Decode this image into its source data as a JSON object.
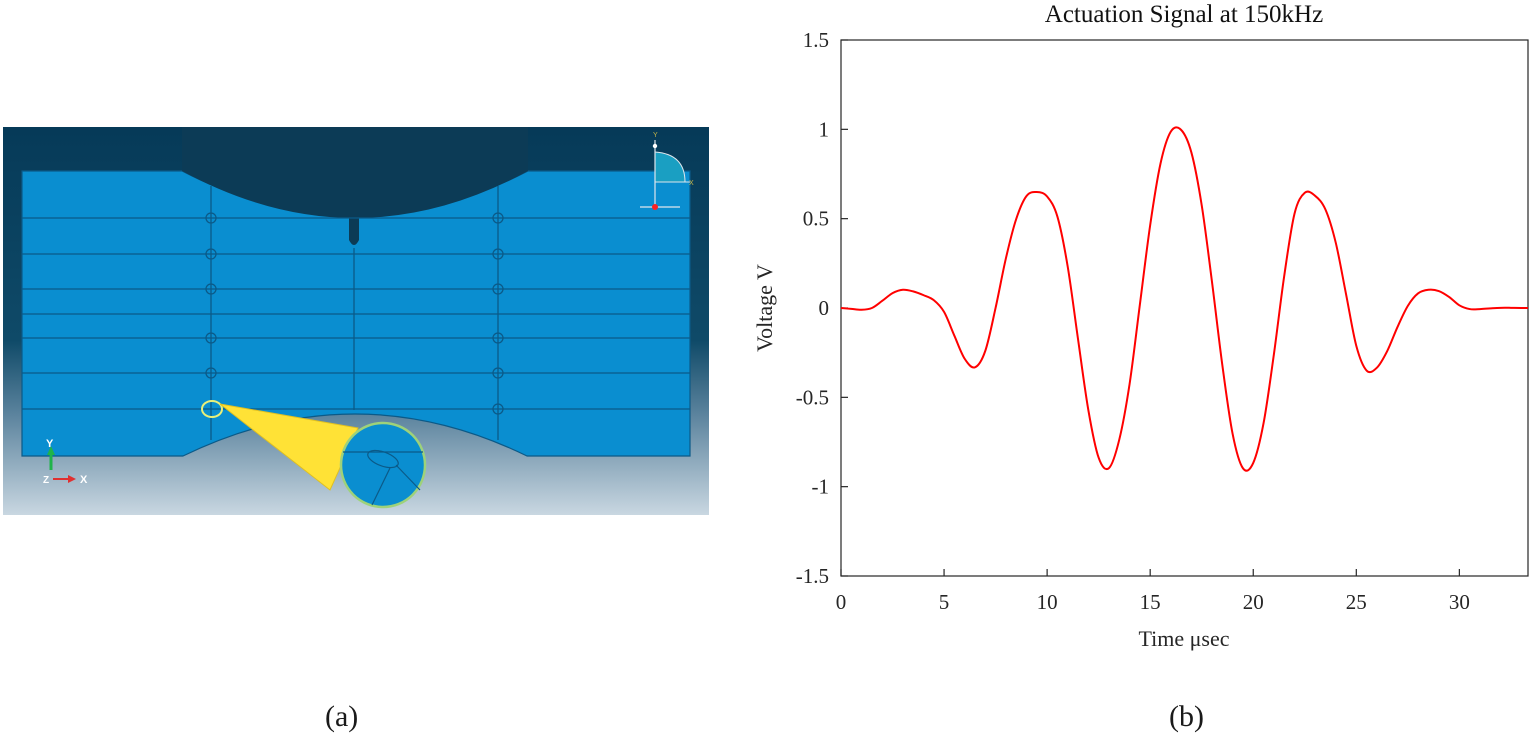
{
  "panels": {
    "a_label": "(a)",
    "b_label": "(b)"
  },
  "model_view": {
    "triad_y": "Y",
    "triad_x": "X",
    "triad_z": "Z",
    "mini_triad_y": "Y",
    "mini_triad_x": "X",
    "colors": {
      "background_top": "#063a58",
      "background_bottom": "#c5d4df",
      "part_fill": "#0a8ed0",
      "part_lines": "#0b5a88",
      "indenter": "#0e3a55",
      "callout": "#ffe236"
    }
  },
  "chart_data": {
    "type": "line",
    "title": "Actuation Signal at 150kHz",
    "xlabel": "Time μsec",
    "ylabel": "Voltage V",
    "xlim": [
      0,
      33.33
    ],
    "ylim": [
      -1.5,
      1.5
    ],
    "x_ticks": [
      0,
      5,
      10,
      15,
      20,
      25,
      30
    ],
    "y_ticks": [
      -1.5,
      -1,
      -0.5,
      0,
      0.5,
      1,
      1.5
    ],
    "x_tick_labels": [
      "0",
      "5",
      "10",
      "15",
      "20",
      "25",
      "30"
    ],
    "y_tick_labels": [
      "-1.5",
      "-1",
      "-0.5",
      "0",
      "0.5",
      "1",
      "1.5"
    ],
    "grid": false,
    "series": [
      {
        "color": "#ff0000",
        "x": [
          0,
          0.5,
          1,
          1.5,
          2,
          2.5,
          3,
          3.5,
          4,
          4.5,
          5,
          5.5,
          6,
          6.5,
          7,
          7.5,
          8,
          8.5,
          9,
          9.5,
          10,
          10.5,
          11,
          11.5,
          12,
          12.5,
          13,
          13.5,
          14,
          14.5,
          15,
          15.5,
          16,
          16.5,
          17,
          17.5,
          18,
          18.5,
          19,
          19.5,
          20,
          20.5,
          21,
          21.5,
          22,
          22.5,
          23,
          23.5,
          24,
          24.5,
          25,
          25.5,
          26,
          26.5,
          27,
          27.5,
          28,
          28.5,
          29,
          29.5,
          30,
          30.5,
          31,
          31.5,
          32,
          32.5,
          33,
          33.33
        ],
        "y": [
          0,
          -0.005,
          -0.01,
          0,
          0.04,
          0.083,
          0.102,
          0.093,
          0.072,
          0.044,
          -0.022,
          -0.155,
          -0.284,
          -0.332,
          -0.24,
          0.001,
          0.278,
          0.498,
          0.627,
          0.649,
          0.624,
          0.511,
          0.231,
          -0.175,
          -0.571,
          -0.838,
          -0.896,
          -0.737,
          -0.426,
          0.019,
          0.464,
          0.808,
          0.987,
          0.997,
          0.87,
          0.575,
          0.145,
          -0.319,
          -0.705,
          -0.897,
          -0.867,
          -0.645,
          -0.261,
          0.177,
          0.527,
          0.645,
          0.628,
          0.552,
          0.367,
          0.079,
          -0.212,
          -0.35,
          -0.334,
          -0.241,
          -0.106,
          0.012,
          0.082,
          0.102,
          0.095,
          0.062,
          0.015,
          -0.006,
          -0.006,
          -0.002,
          0.001,
          0.001,
          0,
          0
        ]
      }
    ]
  }
}
